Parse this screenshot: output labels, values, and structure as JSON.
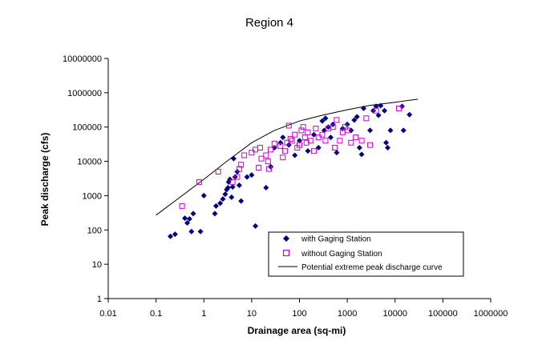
{
  "chart_data": {
    "type": "scatter",
    "title": "Region 4",
    "xlabel": "Drainage area (sq-mi)",
    "ylabel": "Peak discharge (cfs)",
    "x_scale": "log",
    "y_scale": "log",
    "xlim": [
      0.01,
      1000000
    ],
    "ylim": [
      1,
      10000000
    ],
    "x_ticks": [
      "0.01",
      "0.1",
      "1",
      "10",
      "100",
      "1000",
      "10000",
      "100000",
      "1000000"
    ],
    "y_ticks": [
      "1",
      "10",
      "100",
      "1000",
      "10000",
      "100000",
      "1000000",
      "10000000"
    ],
    "grid": false,
    "legend_position": "bottom-right",
    "series": [
      {
        "name": "with Gaging Station",
        "marker": "diamond",
        "color": "#000080",
        "points": [
          [
            0.2,
            65
          ],
          [
            0.25,
            75
          ],
          [
            0.4,
            220
          ],
          [
            0.45,
            160
          ],
          [
            0.5,
            210
          ],
          [
            0.55,
            90
          ],
          [
            0.6,
            300
          ],
          [
            0.85,
            90
          ],
          [
            1,
            1000
          ],
          [
            1.7,
            300
          ],
          [
            1.8,
            500
          ],
          [
            2.2,
            600
          ],
          [
            2.5,
            800
          ],
          [
            2.8,
            1100
          ],
          [
            3.0,
            1500
          ],
          [
            3.2,
            1700
          ],
          [
            3.3,
            2500
          ],
          [
            3.5,
            3000
          ],
          [
            3.8,
            900
          ],
          [
            4.0,
            1800
          ],
          [
            4.2,
            12000
          ],
          [
            4.5,
            3500
          ],
          [
            5,
            5000
          ],
          [
            5.5,
            2000
          ],
          [
            6,
            700
          ],
          [
            8,
            3500
          ],
          [
            10,
            4000
          ],
          [
            12,
            130
          ],
          [
            20,
            1700
          ],
          [
            25,
            7000
          ],
          [
            30,
            25000
          ],
          [
            40,
            35000
          ],
          [
            45,
            50000
          ],
          [
            60,
            30000
          ],
          [
            80,
            15000
          ],
          [
            100,
            40000
          ],
          [
            150,
            20000
          ],
          [
            200,
            60000
          ],
          [
            250,
            25000
          ],
          [
            300,
            150000
          ],
          [
            330,
            80000
          ],
          [
            350,
            180000
          ],
          [
            400,
            100000
          ],
          [
            450,
            50000
          ],
          [
            500,
            120000
          ],
          [
            600,
            18000
          ],
          [
            800,
            90000
          ],
          [
            1000,
            120000
          ],
          [
            1200,
            80000
          ],
          [
            1400,
            160000
          ],
          [
            1600,
            200000
          ],
          [
            1800,
            25000
          ],
          [
            2000,
            16000
          ],
          [
            2200,
            350000
          ],
          [
            3000,
            80000
          ],
          [
            3500,
            300000
          ],
          [
            4000,
            400000
          ],
          [
            4500,
            220000
          ],
          [
            5000,
            420000
          ],
          [
            6000,
            300000
          ],
          [
            6500,
            35000
          ],
          [
            7000,
            25000
          ],
          [
            8000,
            80000
          ],
          [
            14000,
            400000
          ],
          [
            15000,
            80000
          ],
          [
            20000,
            230000
          ]
        ]
      },
      {
        "name": "without Gaging Station",
        "marker": "square",
        "color": "#cc00cc",
        "points": [
          [
            0.35,
            500
          ],
          [
            0.8,
            2500
          ],
          [
            2,
            5000
          ],
          [
            4,
            2500
          ],
          [
            5,
            3500
          ],
          [
            5.5,
            6000
          ],
          [
            6,
            8000
          ],
          [
            7,
            15000
          ],
          [
            10,
            18000
          ],
          [
            12,
            22000
          ],
          [
            14,
            6500
          ],
          [
            15,
            25000
          ],
          [
            16,
            12000
          ],
          [
            20,
            15000
          ],
          [
            22,
            10000
          ],
          [
            23,
            6000
          ],
          [
            25,
            22000
          ],
          [
            30,
            33000
          ],
          [
            40,
            28000
          ],
          [
            45,
            13000
          ],
          [
            50,
            20000
          ],
          [
            55,
            35000
          ],
          [
            60,
            110000
          ],
          [
            65,
            45000
          ],
          [
            70,
            40000
          ],
          [
            80,
            60000
          ],
          [
            90,
            25000
          ],
          [
            100,
            30000
          ],
          [
            110,
            80000
          ],
          [
            120,
            100000
          ],
          [
            130,
            50000
          ],
          [
            140,
            35000
          ],
          [
            150,
            70000
          ],
          [
            170,
            40000
          ],
          [
            200,
            20000
          ],
          [
            220,
            90000
          ],
          [
            250,
            50000
          ],
          [
            300,
            60000
          ],
          [
            350,
            40000
          ],
          [
            400,
            90000
          ],
          [
            500,
            100000
          ],
          [
            550,
            25000
          ],
          [
            600,
            160000
          ],
          [
            700,
            40000
          ],
          [
            800,
            70000
          ],
          [
            900,
            100000
          ],
          [
            1000,
            80000
          ],
          [
            1200,
            35000
          ],
          [
            1500,
            50000
          ],
          [
            2000,
            40000
          ],
          [
            2500,
            180000
          ],
          [
            3000,
            30000
          ],
          [
            4000,
            300000
          ],
          [
            12000,
            350000
          ]
        ]
      },
      {
        "name": "Potential extreme peak discharge curve",
        "marker": "line",
        "color": "#000000",
        "points": [
          [
            0.1,
            270
          ],
          [
            1,
            3000
          ],
          [
            3,
            10000
          ],
          [
            10,
            35000
          ],
          [
            30,
            80000
          ],
          [
            100,
            150000
          ],
          [
            300,
            220000
          ],
          [
            1000,
            320000
          ],
          [
            3000,
            430000
          ],
          [
            10000,
            530000
          ],
          [
            30000,
            650000
          ]
        ]
      }
    ]
  }
}
